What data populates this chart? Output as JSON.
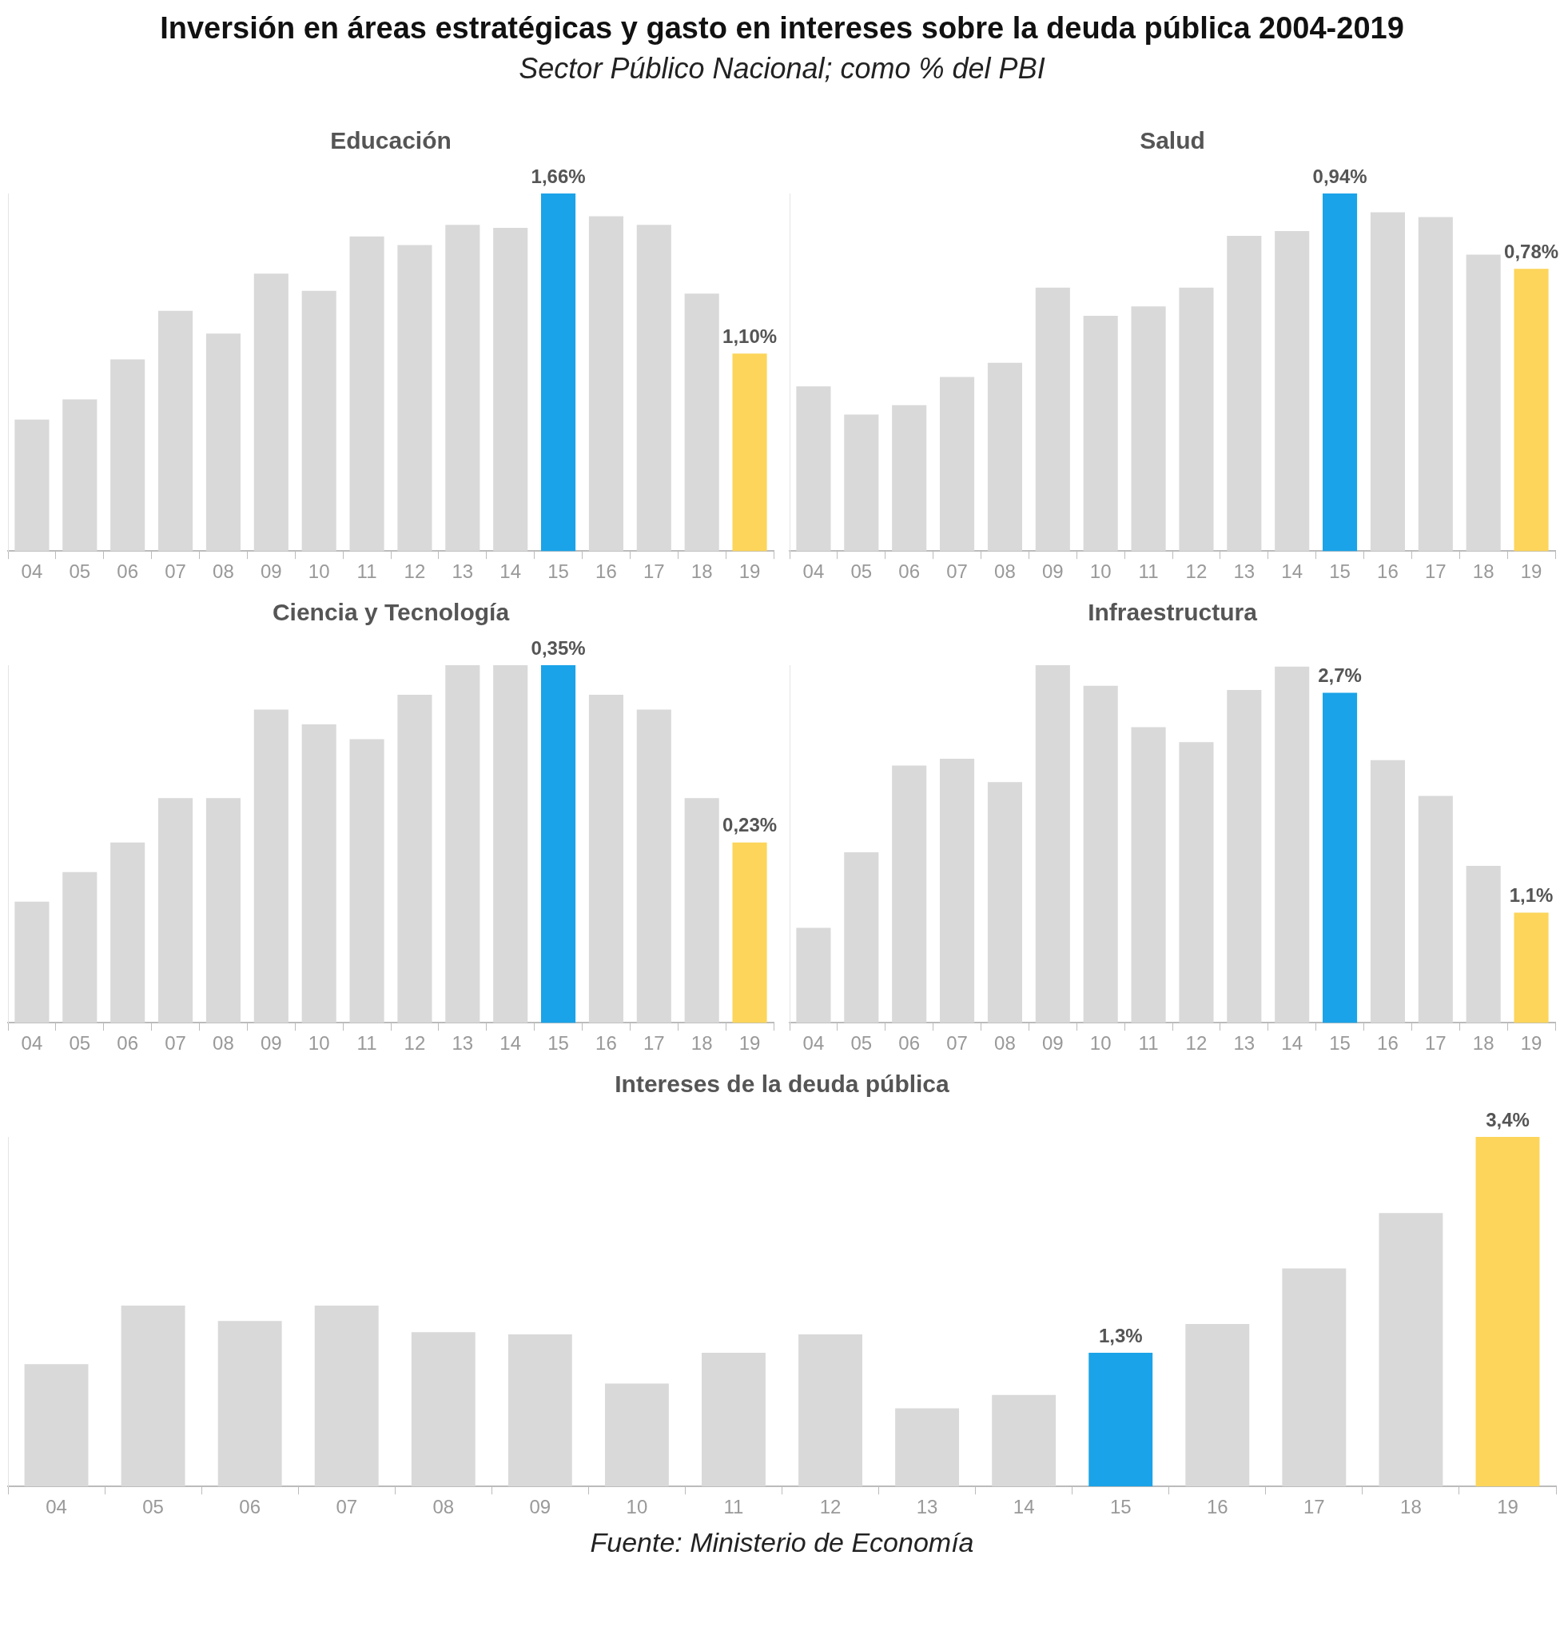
{
  "chart_data": [
    {
      "type": "other",
      "title": "Inversión en áreas estratégicas y gasto en intereses sobre la deuda pública 2004-2019",
      "subtitle": "Sector Público Nacional; como % del PBI"
    },
    {
      "type": "bar",
      "title": "Educación",
      "categories": [
        "04",
        "05",
        "06",
        "07",
        "08",
        "09",
        "10",
        "11",
        "12",
        "13",
        "14",
        "15",
        "16",
        "17",
        "18",
        "19"
      ],
      "values": [
        0.87,
        0.94,
        1.08,
        1.25,
        1.17,
        1.38,
        1.32,
        1.51,
        1.48,
        1.55,
        1.54,
        1.66,
        1.58,
        1.55,
        1.31,
        1.1
      ],
      "colors": [
        "#d9d9d9",
        "#d9d9d9",
        "#d9d9d9",
        "#d9d9d9",
        "#d9d9d9",
        "#d9d9d9",
        "#d9d9d9",
        "#d9d9d9",
        "#d9d9d9",
        "#d9d9d9",
        "#d9d9d9",
        "#1aa3e8",
        "#d9d9d9",
        "#d9d9d9",
        "#d9d9d9",
        "#fcd55a"
      ],
      "value_labels": [
        null,
        null,
        null,
        null,
        null,
        null,
        null,
        null,
        null,
        null,
        null,
        "1,66%",
        null,
        null,
        null,
        "1,10%"
      ],
      "ylim": [
        0.41,
        1.66
      ],
      "tick_labels": "x"
    },
    {
      "type": "bar",
      "title": "Salud",
      "categories": [
        "04",
        "05",
        "06",
        "07",
        "08",
        "09",
        "10",
        "11",
        "12",
        "13",
        "14",
        "15",
        "16",
        "17",
        "18",
        "19"
      ],
      "values": [
        0.53,
        0.47,
        0.49,
        0.55,
        0.58,
        0.74,
        0.68,
        0.7,
        0.74,
        0.85,
        0.86,
        0.94,
        0.9,
        0.89,
        0.81,
        0.78
      ],
      "colors": [
        "#d9d9d9",
        "#d9d9d9",
        "#d9d9d9",
        "#d9d9d9",
        "#d9d9d9",
        "#d9d9d9",
        "#d9d9d9",
        "#d9d9d9",
        "#d9d9d9",
        "#d9d9d9",
        "#d9d9d9",
        "#1aa3e8",
        "#d9d9d9",
        "#d9d9d9",
        "#d9d9d9",
        "#fcd55a"
      ],
      "value_labels": [
        null,
        null,
        null,
        null,
        null,
        null,
        null,
        null,
        null,
        null,
        null,
        "0,94%",
        null,
        null,
        null,
        "0,78%"
      ],
      "ylim": [
        0.18,
        0.94
      ],
      "tick_labels": "x"
    },
    {
      "type": "bar",
      "title": "Ciencia y Tecnología",
      "categories": [
        "04",
        "05",
        "06",
        "07",
        "08",
        "09",
        "10",
        "11",
        "12",
        "13",
        "14",
        "15",
        "16",
        "17",
        "18",
        "19"
      ],
      "values": [
        0.19,
        0.21,
        0.23,
        0.26,
        0.26,
        0.32,
        0.31,
        0.3,
        0.33,
        0.35,
        0.35,
        0.35,
        0.33,
        0.32,
        0.26,
        0.23
      ],
      "colors": [
        "#d9d9d9",
        "#d9d9d9",
        "#d9d9d9",
        "#d9d9d9",
        "#d9d9d9",
        "#d9d9d9",
        "#d9d9d9",
        "#d9d9d9",
        "#d9d9d9",
        "#d9d9d9",
        "#d9d9d9",
        "#1aa3e8",
        "#d9d9d9",
        "#d9d9d9",
        "#d9d9d9",
        "#fcd55a"
      ],
      "value_labels": [
        null,
        null,
        null,
        null,
        null,
        null,
        null,
        null,
        null,
        null,
        null,
        "0,35%",
        null,
        null,
        null,
        "0,23%"
      ],
      "ylim": [
        0.108,
        0.35
      ],
      "tick_labels": "x"
    },
    {
      "type": "bar",
      "title": "Infraestructura",
      "categories": [
        "04",
        "05",
        "06",
        "07",
        "08",
        "09",
        "10",
        "11",
        "12",
        "13",
        "14",
        "15",
        "16",
        "17",
        "18",
        "19"
      ],
      "values": [
        0.99,
        1.54,
        2.17,
        2.22,
        2.05,
        2.9,
        2.75,
        2.45,
        2.34,
        2.72,
        2.89,
        2.7,
        2.21,
        1.95,
        1.44,
        1.1
      ],
      "colors": [
        "#d9d9d9",
        "#d9d9d9",
        "#d9d9d9",
        "#d9d9d9",
        "#d9d9d9",
        "#d9d9d9",
        "#d9d9d9",
        "#d9d9d9",
        "#d9d9d9",
        "#d9d9d9",
        "#d9d9d9",
        "#1aa3e8",
        "#d9d9d9",
        "#d9d9d9",
        "#d9d9d9",
        "#fcd55a"
      ],
      "value_labels": [
        null,
        null,
        null,
        null,
        null,
        null,
        null,
        null,
        null,
        null,
        null,
        "2,7%",
        null,
        null,
        null,
        "1,1%"
      ],
      "ylim": [
        0.3,
        2.9
      ],
      "tick_labels": "x"
    },
    {
      "type": "bar",
      "title": "Intereses de la deuda pública",
      "categories": [
        "04",
        "05",
        "06",
        "07",
        "08",
        "09",
        "10",
        "11",
        "12",
        "13",
        "14",
        "15",
        "16",
        "17",
        "18",
        "19"
      ],
      "values": [
        1.19,
        1.76,
        1.61,
        1.76,
        1.5,
        1.48,
        1.0,
        1.3,
        1.48,
        0.76,
        0.89,
        1.3,
        1.58,
        2.12,
        2.66,
        3.4
      ],
      "colors": [
        "#d9d9d9",
        "#d9d9d9",
        "#d9d9d9",
        "#d9d9d9",
        "#d9d9d9",
        "#d9d9d9",
        "#d9d9d9",
        "#d9d9d9",
        "#d9d9d9",
        "#d9d9d9",
        "#d9d9d9",
        "#1aa3e8",
        "#d9d9d9",
        "#d9d9d9",
        "#d9d9d9",
        "#fcd55a"
      ],
      "value_labels": [
        null,
        null,
        null,
        null,
        null,
        null,
        null,
        null,
        null,
        null,
        null,
        "1,3%",
        null,
        null,
        null,
        "3,4%"
      ],
      "ylim": [
        0,
        3.4
      ],
      "tick_labels": "x",
      "annotations": [
        "Fuente: Ministerio de Economía"
      ]
    }
  ]
}
